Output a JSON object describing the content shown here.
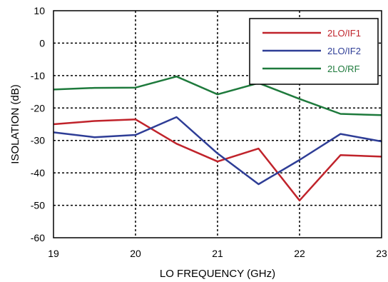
{
  "chart_data": {
    "type": "line",
    "title": "",
    "xlabel": "LO FREQUENCY (GHz)",
    "ylabel": "ISOLATION  (dB)",
    "xlim": [
      19,
      23
    ],
    "ylim": [
      -60,
      10
    ],
    "xticks": [
      19,
      20,
      21,
      22,
      23
    ],
    "yticks": [
      10,
      0,
      -10,
      -20,
      -30,
      -40,
      -50,
      -60
    ],
    "grid": true,
    "legend_position": "top-right",
    "x": [
      19,
      19.5,
      20,
      20.5,
      21,
      21.5,
      22,
      22.5,
      23
    ],
    "series": [
      {
        "name": "2LO/IF1",
        "color": "#c0232b",
        "values": [
          -25,
          -24,
          -23.5,
          -31,
          -36.5,
          -32.5,
          -48.5,
          -34.5,
          -35
        ]
      },
      {
        "name": "2LO/IF2",
        "color": "#2e3d96",
        "values": [
          -27.5,
          -29,
          -28.3,
          -22.8,
          -34,
          -43.5,
          -36,
          -28,
          -30.3
        ]
      },
      {
        "name": "2LO/RF",
        "color": "#1e7a3c",
        "values": [
          -14.3,
          -13.8,
          -13.7,
          -10.3,
          -15.8,
          -12.3,
          -17.2,
          -21.8,
          -22.2
        ]
      }
    ]
  }
}
